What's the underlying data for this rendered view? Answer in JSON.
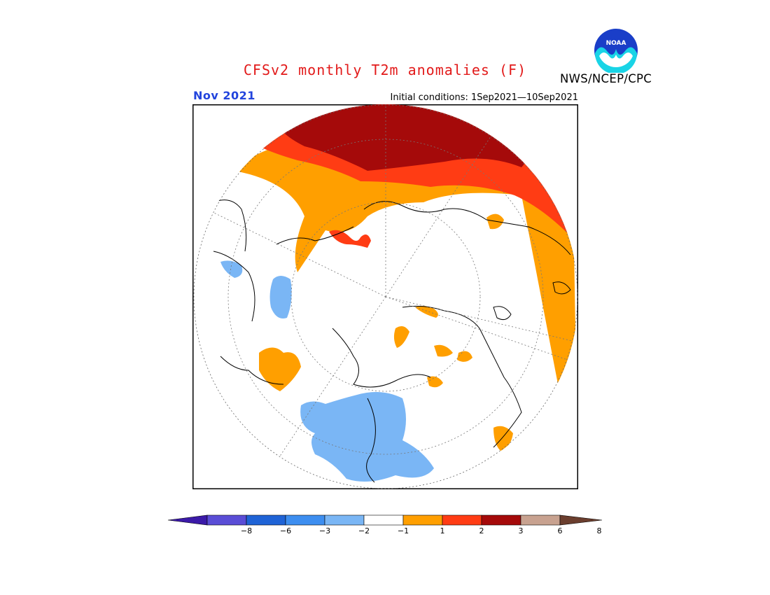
{
  "title": "CFSv2 monthly T2m anomalies (F)",
  "month": "Nov 2021",
  "initial_conditions": "Initial conditions: 1Sep2021—10Sep2021",
  "organization": "NWS/NCEP/CPC",
  "logo_text": "NOAA",
  "legend": {
    "labels": [
      "−8",
      "−6",
      "−3",
      "−2",
      "−1",
      "1",
      "2",
      "3",
      "6",
      "8"
    ],
    "colors": [
      "#3b1aa8",
      "#5a4dd6",
      "#1f63d6",
      "#3d8ef0",
      "#7ab6f5",
      "#ffffff",
      "#ff9f00",
      "#ff3c14",
      "#a50a0a",
      "#c8a290",
      "#6b3e2e"
    ]
  },
  "colors": {
    "deep_red": "#a50a0a",
    "red": "#ff3c14",
    "orange": "#ff9f00",
    "light_blue": "#7ab6f5",
    "title_red": "#e21a1a",
    "month_blue": "#2244dd"
  }
}
